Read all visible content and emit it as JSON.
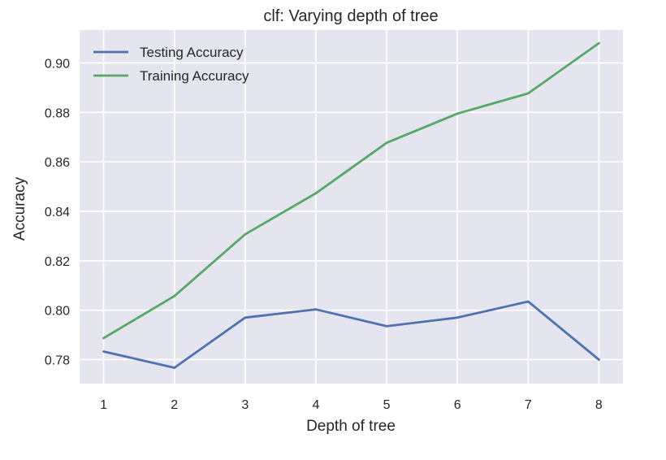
{
  "chart_data": {
    "type": "line",
    "title": "clf: Varying depth of tree",
    "xlabel": "Depth of tree",
    "ylabel": "Accuracy",
    "x": [
      1,
      2,
      3,
      4,
      5,
      6,
      7,
      8
    ],
    "xticks": [
      "1",
      "2",
      "3",
      "4",
      "5",
      "6",
      "7",
      "8"
    ],
    "xlim": [
      0.66,
      8.34
    ],
    "ylim": [
      0.7703,
      0.9133
    ],
    "yticks": [
      "0.78",
      "0.80",
      "0.82",
      "0.84",
      "0.86",
      "0.88",
      "0.90"
    ],
    "ytick_values": [
      0.78,
      0.8,
      0.82,
      0.84,
      0.86,
      0.88,
      0.9
    ],
    "grid": true,
    "legend_position": "top-left",
    "background": "#e5e5f0",
    "series": [
      {
        "name": "Testing Accuracy",
        "color": "#4c72b0",
        "values": [
          0.7833,
          0.7767,
          0.797,
          0.8003,
          0.7935,
          0.797,
          0.8035,
          0.78
        ]
      },
      {
        "name": "Training Accuracy",
        "color": "#55a868",
        "values": [
          0.7887,
          0.8057,
          0.8307,
          0.8473,
          0.8677,
          0.8795,
          0.8877,
          0.908
        ]
      }
    ]
  }
}
